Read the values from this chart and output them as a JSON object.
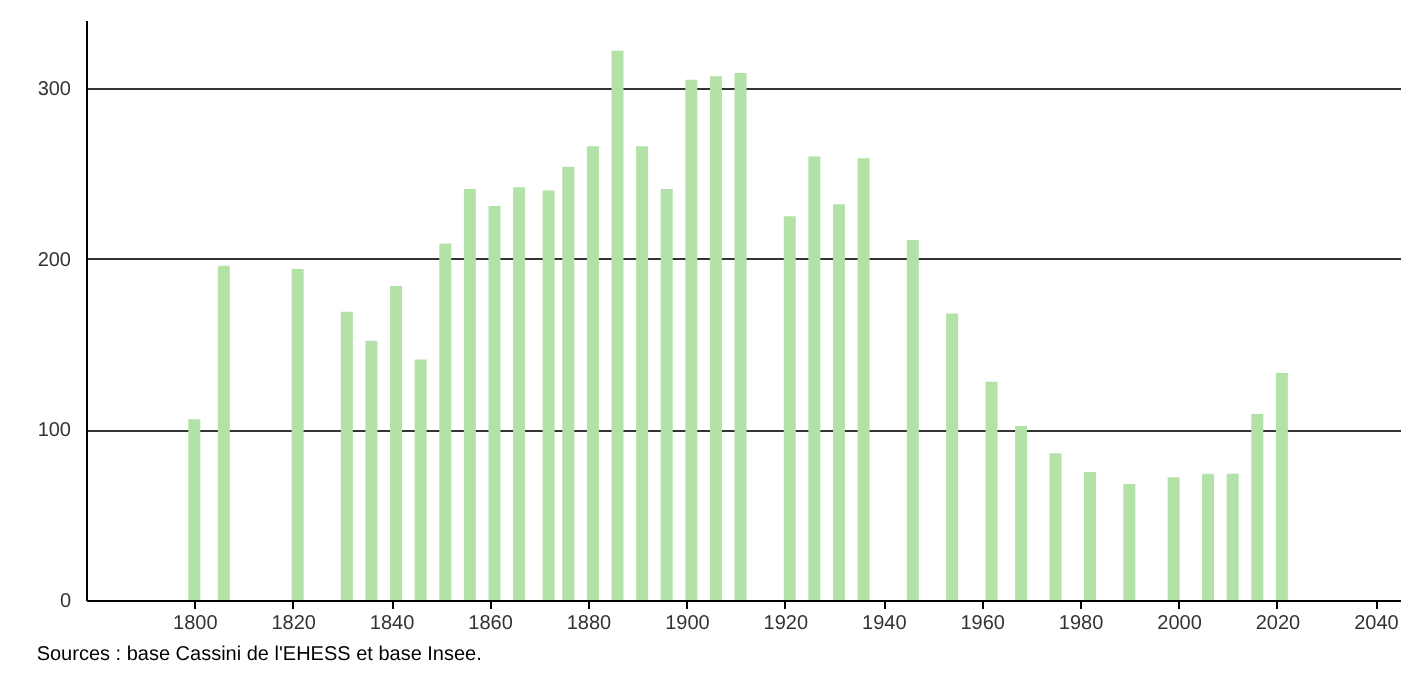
{
  "chart_data": {
    "type": "bar",
    "x": [
      1800,
      1806,
      1821,
      1831,
      1836,
      1841,
      1846,
      1851,
      1856,
      1861,
      1866,
      1872,
      1876,
      1881,
      1886,
      1891,
      1896,
      1901,
      1906,
      1911,
      1921,
      1926,
      1931,
      1936,
      1946,
      1954,
      1962,
      1968,
      1975,
      1982,
      1990,
      1999,
      2006,
      2011,
      2016,
      2021
    ],
    "values": [
      106,
      196,
      194,
      169,
      152,
      184,
      141,
      209,
      241,
      231,
      242,
      240,
      254,
      266,
      322,
      266,
      241,
      305,
      307,
      309,
      225,
      260,
      232,
      259,
      211,
      168,
      128,
      102,
      86,
      75,
      68,
      72,
      74,
      74,
      109,
      133
    ],
    "color": "#b3e2a8",
    "xlim": [
      1778,
      2045
    ],
    "xticks": [
      1800,
      1820,
      1840,
      1860,
      1880,
      1900,
      1920,
      1940,
      1960,
      1980,
      2000,
      2020,
      2040
    ],
    "ylim": [
      0,
      340
    ],
    "yticks": [
      0,
      100,
      200,
      300
    ],
    "grid": "y",
    "annotations": [
      "Sources : base Cassini de l'EHESS et base Insee."
    ]
  }
}
